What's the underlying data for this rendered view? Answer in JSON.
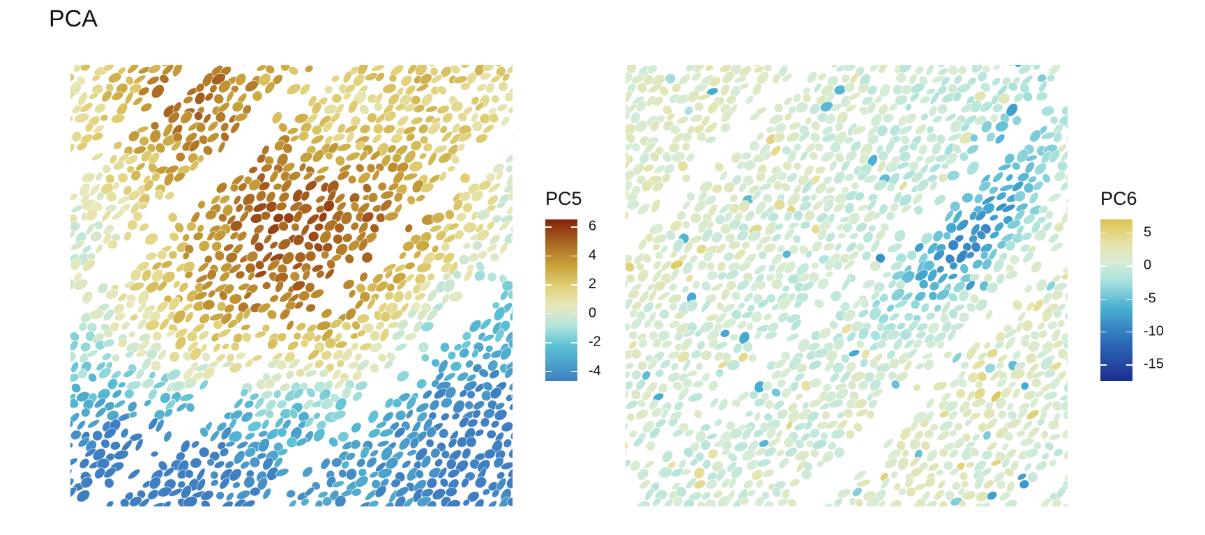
{
  "title": "PCA",
  "chart_data": [
    {
      "type": "heatmap",
      "subtype": "spatial cell map",
      "legend_title": "PC5",
      "scale": {
        "min": -4.7,
        "max": 6.5,
        "ticks": [
          6,
          4,
          2,
          0,
          -2,
          -4
        ]
      },
      "colormap": [
        {
          "value": -4.7,
          "color": "#3f7fc1"
        },
        {
          "value": -2.3,
          "color": "#59c0d4"
        },
        {
          "value": -0.8,
          "color": "#b8e6dc"
        },
        {
          "value": 0.5,
          "color": "#e7e8bc"
        },
        {
          "value": 1.8,
          "color": "#e2d27a"
        },
        {
          "value": 3.2,
          "color": "#c9a53c"
        },
        {
          "value": 4.8,
          "color": "#ab6a22"
        },
        {
          "value": 6.5,
          "color": "#84200a"
        }
      ]
    },
    {
      "type": "heatmap",
      "subtype": "spatial cell map",
      "legend_title": "PC6",
      "scale": {
        "min": -17.5,
        "max": 7,
        "ticks": [
          5,
          0,
          -5,
          -10,
          -15
        ]
      },
      "colormap": [
        {
          "value": -17.5,
          "color": "#1e2d8e"
        },
        {
          "value": -12,
          "color": "#2b65b5"
        },
        {
          "value": -6.5,
          "color": "#46aed2"
        },
        {
          "value": -2.5,
          "color": "#a5e1dd"
        },
        {
          "value": 0.5,
          "color": "#d7ecd6"
        },
        {
          "value": 3.5,
          "color": "#e7e2a6"
        },
        {
          "value": 7,
          "color": "#d9c34d"
        }
      ]
    }
  ]
}
